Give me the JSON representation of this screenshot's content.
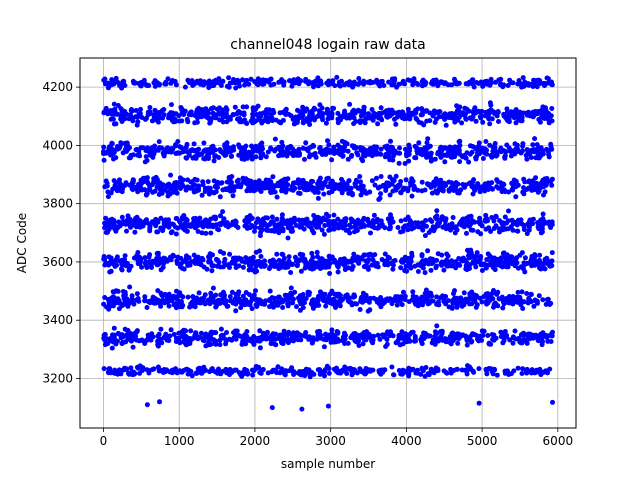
{
  "chart_data": {
    "type": "scatter",
    "title": "channel048 logain raw data",
    "xlabel": "sample number",
    "ylabel": "ADC Code",
    "xlim": [
      -310,
      6240
    ],
    "ylim": [
      3030,
      4300
    ],
    "xticks": [
      0,
      1000,
      2000,
      3000,
      4000,
      5000,
      6000
    ],
    "yticks": [
      3200,
      3400,
      3600,
      3800,
      4000,
      4200
    ],
    "grid": true,
    "marker_color": "#0000ff",
    "points_per_level": 20,
    "levels": [
      {
        "center": 4215,
        "spread": 12,
        "fill": 0.55
      },
      {
        "center": 4105,
        "spread": 25,
        "fill": 1.0
      },
      {
        "center": 3980,
        "spread": 25,
        "fill": 1.0
      },
      {
        "center": 3860,
        "spread": 25,
        "fill": 1.0
      },
      {
        "center": 3730,
        "spread": 25,
        "fill": 1.0
      },
      {
        "center": 3600,
        "spread": 25,
        "fill": 1.0
      },
      {
        "center": 3470,
        "spread": 25,
        "fill": 1.0
      },
      {
        "center": 3340,
        "spread": 22,
        "fill": 0.95
      },
      {
        "center": 3225,
        "spread": 12,
        "fill": 0.55
      }
    ],
    "outliers": [
      {
        "x": 580,
        "y": 3110
      },
      {
        "x": 740,
        "y": 3120
      },
      {
        "x": 2230,
        "y": 3100
      },
      {
        "x": 2620,
        "y": 3095
      },
      {
        "x": 2970,
        "y": 3105
      },
      {
        "x": 4960,
        "y": 3115
      },
      {
        "x": 5930,
        "y": 3118
      }
    ]
  }
}
